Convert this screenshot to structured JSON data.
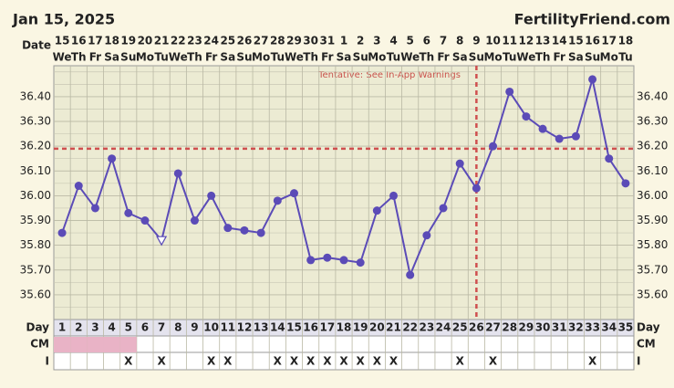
{
  "chart_data": {
    "type": "line",
    "title": "Jan 15, 2025",
    "brand": "FertilityFriend.com",
    "annotation": "Tentative: See In-App Warnings",
    "date_label": "Date",
    "day_label": "Day",
    "cm_label": "CM",
    "i_label": "I",
    "dates": [
      15,
      16,
      17,
      18,
      19,
      20,
      21,
      22,
      23,
      24,
      25,
      26,
      27,
      28,
      29,
      30,
      31,
      1,
      2,
      3,
      4,
      5,
      6,
      7,
      8,
      9,
      10,
      11,
      12,
      13,
      14,
      15,
      16,
      17,
      18
    ],
    "weekdays": [
      "We",
      "Th",
      "Fr",
      "Sa",
      "Su",
      "Mo",
      "Tu",
      "We",
      "Th",
      "Fr",
      "Sa",
      "Su",
      "Mo",
      "Tu",
      "We",
      "Th",
      "Fr",
      "Sa",
      "Su",
      "Mo",
      "Tu",
      "We",
      "Th",
      "Fr",
      "Sa",
      "Su",
      "Mo",
      "Tu",
      "We",
      "Th",
      "Fr",
      "Sa",
      "Su",
      "Mo",
      "Tu"
    ],
    "categories": [
      1,
      2,
      3,
      4,
      5,
      6,
      7,
      8,
      9,
      10,
      11,
      12,
      13,
      14,
      15,
      16,
      17,
      18,
      19,
      20,
      21,
      22,
      23,
      24,
      25,
      26,
      27,
      28,
      29,
      30,
      31,
      32,
      33,
      34,
      35
    ],
    "values": [
      35.85,
      36.04,
      35.95,
      36.15,
      35.93,
      35.9,
      35.82,
      36.09,
      35.9,
      36.0,
      35.87,
      35.86,
      35.85,
      35.98,
      36.01,
      35.74,
      35.75,
      35.74,
      35.73,
      35.94,
      36.0,
      35.68,
      35.84,
      35.95,
      36.13,
      36.03,
      36.2,
      36.42,
      36.32,
      36.27,
      36.23,
      36.24,
      36.47,
      36.15,
      36.05
    ],
    "open_marker_days": [
      7
    ],
    "color": "#5b4bb7",
    "coverline": 36.19,
    "ovulation_day": 26,
    "cm_days": [
      1,
      2,
      3,
      4,
      5
    ],
    "cm_color": "#e9b3c6",
    "i_marks": [
      null,
      null,
      null,
      null,
      "X",
      null,
      "X",
      null,
      null,
      "X",
      "X",
      null,
      null,
      "X",
      "X",
      "X",
      "X",
      "X",
      "X",
      "X",
      "X",
      null,
      null,
      null,
      "X",
      null,
      "X",
      null,
      null,
      null,
      null,
      null,
      "X",
      null,
      null
    ],
    "ylim": [
      35.5,
      36.525
    ],
    "yticks": [
      {
        "value": 35.6,
        "label": "35.60"
      },
      {
        "value": 35.7,
        "label": "35.70"
      },
      {
        "value": 35.8,
        "label": "35.80"
      },
      {
        "value": 35.9,
        "label": "35.90"
      },
      {
        "value": 36.0,
        "label": "36.00"
      },
      {
        "value": 36.1,
        "label": "36.10"
      },
      {
        "value": 36.2,
        "label": "36.20"
      },
      {
        "value": 36.3,
        "label": "36.30"
      },
      {
        "value": 36.4,
        "label": "36.40"
      }
    ],
    "grid": true
  }
}
